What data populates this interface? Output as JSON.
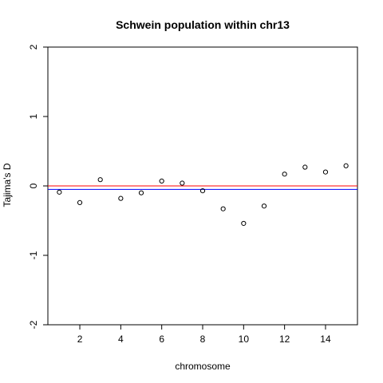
{
  "chart_data": {
    "type": "scatter",
    "title": "Schwein population within chr13",
    "xlabel": "chromosome",
    "ylabel": "Tajima's D",
    "xlim": [
      0.44,
      15.56
    ],
    "ylim": [
      -2.0,
      2.0
    ],
    "x_ticks": [
      2,
      4,
      6,
      8,
      10,
      12,
      14
    ],
    "y_ticks": [
      -2,
      -1,
      0,
      1,
      2
    ],
    "x_tick_labels": [
      "2",
      "4",
      "6",
      "8",
      "10",
      "12",
      "14"
    ],
    "y_tick_labels": [
      "-2",
      "-1",
      "0",
      "1",
      "2"
    ],
    "grid": false,
    "legend": "none",
    "x": [
      1,
      2,
      3,
      4,
      5,
      6,
      7,
      8,
      9,
      10,
      11,
      12,
      13,
      14,
      15
    ],
    "y": [
      -0.09,
      -0.24,
      0.09,
      -0.18,
      -0.1,
      0.07,
      0.04,
      -0.07,
      -0.33,
      -0.54,
      -0.29,
      0.17,
      0.27,
      0.2,
      0.29
    ],
    "reference_lines": [
      {
        "y": 0.0,
        "color": "#ff0000"
      },
      {
        "y": -0.05,
        "color": "#0000ff"
      }
    ],
    "point_color": "#000000"
  }
}
